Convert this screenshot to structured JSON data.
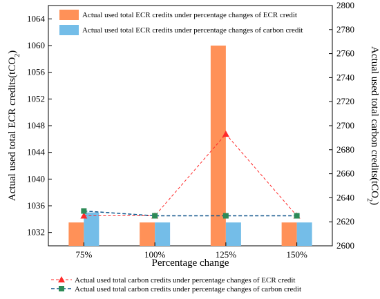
{
  "chart_data": {
    "type": "bar",
    "categories": [
      "75%",
      "100%",
      "125%",
      "150%"
    ],
    "xlabel": "Percentage change",
    "ylabel_left": "Actual used total ECR credits(tCO",
    "ylabel_right": "Actual used total carbon credits(tCO",
    "ylabel_sub": "2",
    "ylabel_tail": ")",
    "ylim_left": [
      1030,
      1066
    ],
    "yticks_left": [
      1032,
      1036,
      1040,
      1044,
      1048,
      1052,
      1056,
      1060,
      1064
    ],
    "ylim_right": [
      2600,
      2800
    ],
    "yticks_right": [
      2600,
      2620,
      2640,
      2660,
      2680,
      2700,
      2720,
      2740,
      2760,
      2780,
      2800
    ],
    "bar_series": [
      {
        "name": "Actual used total ECR credits under percentage changes of ECR credit",
        "color": "#FF9158",
        "axis": "left",
        "values": [
          1033.5,
          1033.5,
          1060,
          1033.5
        ]
      },
      {
        "name": "Actual used total ECR credits under percentage changes of carbon credit",
        "color": "#74BDE8",
        "axis": "left",
        "values": [
          1035,
          1033.5,
          1033.5,
          1033.5
        ]
      }
    ],
    "line_series": [
      {
        "name": "Actual used total carbon credits under percentage changes of ECR credit",
        "color": "#FF2A2A",
        "marker": "triangle",
        "dash": "dashed",
        "axis": "right",
        "values": [
          2625,
          2625,
          2693,
          2625
        ]
      },
      {
        "name": "Actual used total carbon credits under percentage changes of carbon credit",
        "color": "#11568C",
        "marker_color": "#2E8B57",
        "marker": "square",
        "dash": "dashed",
        "axis": "right",
        "values": [
          2629,
          2625,
          2625,
          2625
        ]
      }
    ],
    "grid": false,
    "legend_bars": "top-left",
    "legend_lines": "bottom"
  }
}
